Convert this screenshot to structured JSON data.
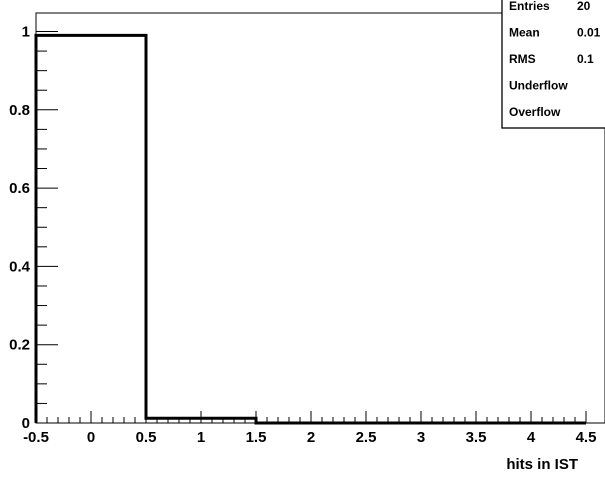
{
  "chart_data": {
    "type": "histogram",
    "title": "",
    "xlabel": "hits in IST",
    "ylabel": "",
    "xlim": [
      -0.5,
      4.5
    ],
    "ylim": [
      0,
      1.05
    ],
    "bins": [
      {
        "x_low": -0.5,
        "x_high": 0.5,
        "value": 0.99
      },
      {
        "x_low": 0.5,
        "x_high": 1.5,
        "value": 0.012
      },
      {
        "x_low": 1.5,
        "x_high": 2.5,
        "value": 0.0
      },
      {
        "x_low": 2.5,
        "x_high": 3.5,
        "value": 0.0
      },
      {
        "x_low": 3.5,
        "x_high": 4.5,
        "value": 0.0
      }
    ],
    "x_ticks": [
      "-0.5",
      "0",
      "0.5",
      "1",
      "1.5",
      "2",
      "2.5",
      "3",
      "3.5",
      "4",
      "4.5"
    ],
    "x_tick_values": [
      -0.5,
      0,
      0.5,
      1,
      1.5,
      2,
      2.5,
      3,
      3.5,
      4,
      4.5
    ],
    "y_ticks": [
      "0",
      "0.2",
      "0.4",
      "0.6",
      "0.8",
      "1"
    ],
    "y_tick_values": [
      0,
      0.2,
      0.4,
      0.6,
      0.8,
      1.0
    ],
    "grid": false,
    "legend": "none",
    "stats_box": {
      "placement": "top-right",
      "rows": [
        {
          "label": "Entries",
          "value": "20"
        },
        {
          "label": "Mean",
          "value": "0.01"
        },
        {
          "label": "RMS",
          "value": "0.1"
        },
        {
          "label": "Underflow",
          "value": ""
        },
        {
          "label": "Overflow",
          "value": ""
        }
      ]
    },
    "colors": {
      "line": "#000000",
      "frame": "#000000",
      "background": "#ffffff"
    }
  }
}
